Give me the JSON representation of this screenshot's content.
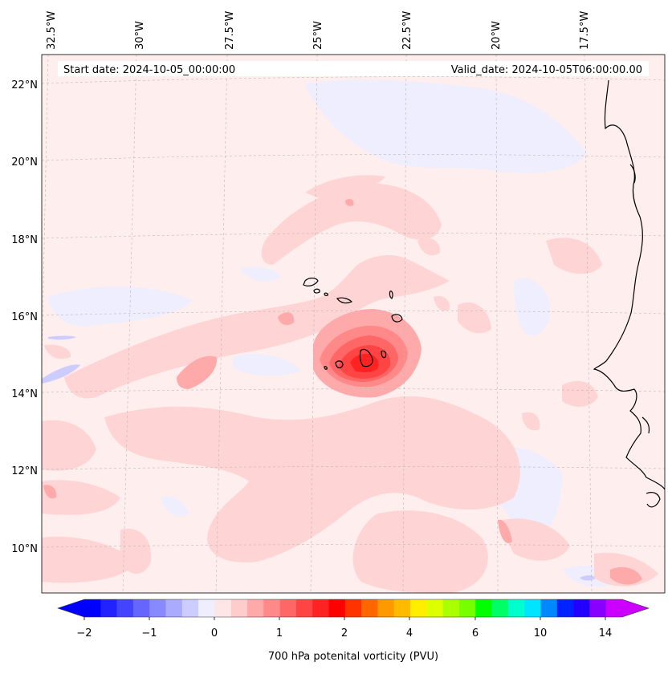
{
  "header": {
    "start_date": "Start date: 2024-10-05_00:00:00",
    "valid_date": "Valid_date: 2024-10-05T06:00:00.00"
  },
  "map": {
    "lon_labels": [
      "32.5°W",
      "30°W",
      "27.5°W",
      "25°W",
      "22.5°W",
      "20°W",
      "17.5°W"
    ],
    "lat_labels": [
      "22°N",
      "20°N",
      "18°N",
      "16°N",
      "14°N",
      "12°N",
      "10°N"
    ],
    "gridlines": true,
    "projection": "lambert-conformal"
  },
  "colorbar": {
    "label": "700 hPa potenital vorticity (PVU)",
    "tick_labels": [
      "−2",
      "−1",
      "0",
      "1",
      "2",
      "4",
      "6",
      "10",
      "14"
    ],
    "colors": [
      "#0000ff",
      "#2222ff",
      "#4444ff",
      "#6666ff",
      "#8888ff",
      "#aaaaff",
      "#ccccff",
      "#eeeeff",
      "#ffe6e6",
      "#ffcccc",
      "#ffaaaa",
      "#ff8888",
      "#ff6666",
      "#ff4444",
      "#ff2222",
      "#ff0000",
      "#ff3300",
      "#ff6600",
      "#ff9900",
      "#ffbb00",
      "#ffee00",
      "#ddff00",
      "#aaff00",
      "#77ff00",
      "#00ff00",
      "#00ff66",
      "#00ffcc",
      "#00e5ff",
      "#0088ff",
      "#0022ff",
      "#2200ff",
      "#8800ff",
      "#cc00ff"
    ],
    "extend": "both"
  },
  "colors": {
    "background_field": "#ffeeee",
    "light_pink": "#ffd4d4",
    "pink": "#ffaaaa",
    "red": "#ff4444",
    "light_blue": "#eeeeff",
    "coast": "#000000"
  }
}
